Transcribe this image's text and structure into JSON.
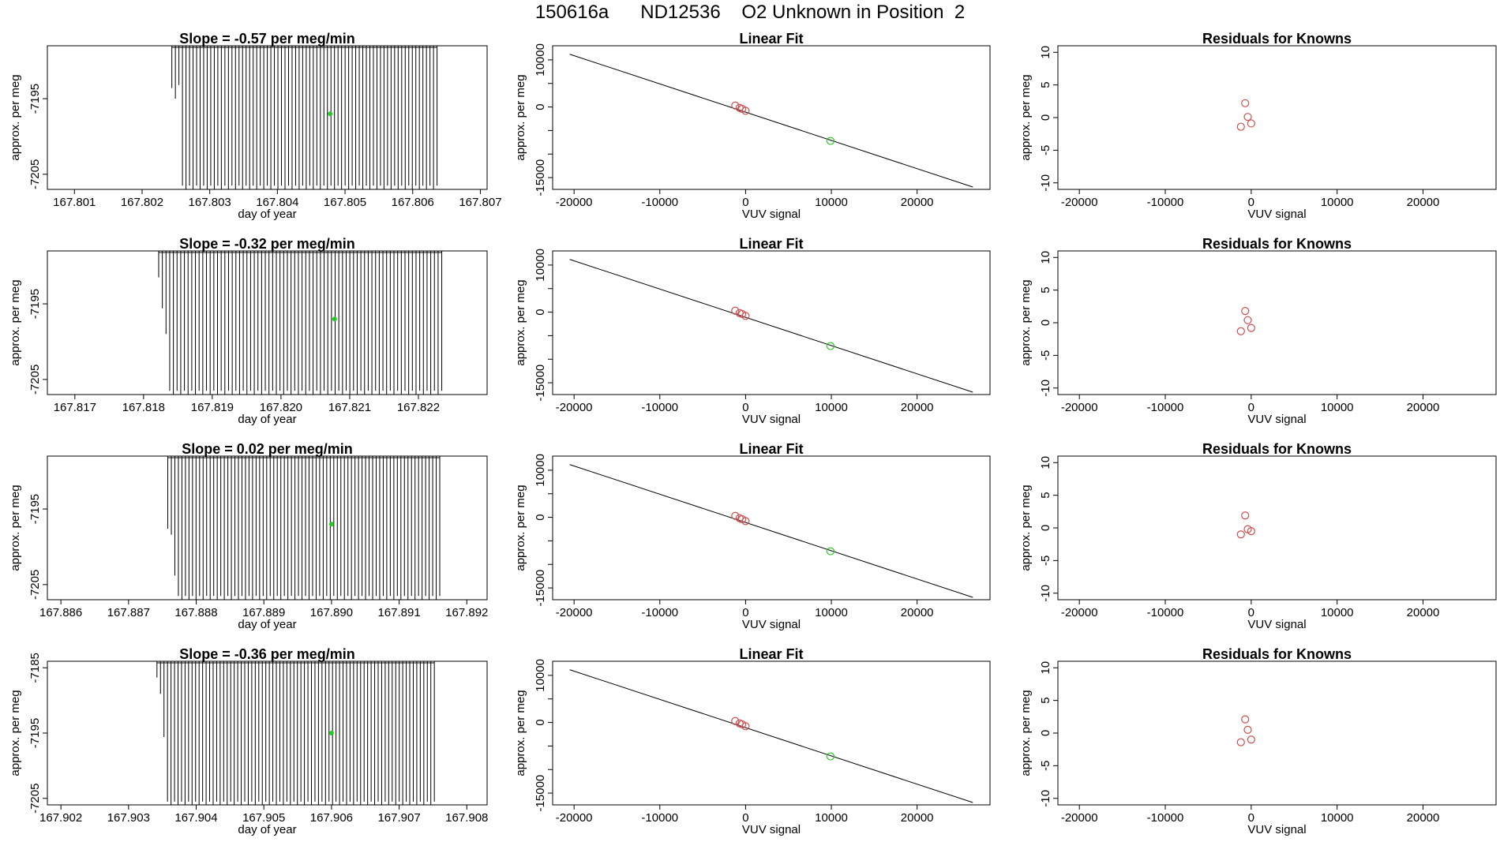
{
  "page_title": "150616a      ND12536    O2 Unknown in Position  2",
  "colors": {
    "trace": "#000000",
    "known_points": "#cd4f4f",
    "unknown_point": "#22cc22",
    "fit_line": "#000000"
  },
  "chart_data": [
    {
      "type": "line",
      "panel": "time-series",
      "row": 1,
      "title": "Slope =  -0.57  per meg/min",
      "xlabel": "day of year",
      "ylabel": "approx. per meg",
      "xlim": [
        167.8006,
        167.8071
      ],
      "ylim": [
        -7207,
        -7188
      ],
      "xticks": [
        "167.801",
        "167.802",
        "167.803",
        "167.804",
        "167.805",
        "167.806",
        "167.807"
      ],
      "yticks": [
        "-7195",
        "-7205"
      ],
      "trace": {
        "start": 167.80244,
        "end": 167.80636,
        "lines": 76,
        "baseline": -7207,
        "top": -7188,
        "low_bound": -7206.5,
        "dips": [
          -7193.6,
          -7195.0,
          -7193.2
        ]
      },
      "unknown_point": {
        "x": 167.80478,
        "y": -7197
      }
    },
    {
      "type": "line",
      "panel": "time-series",
      "row": 2,
      "title": "Slope =  -0.32  per meg/min",
      "xlabel": "day of year",
      "ylabel": "approx. per meg",
      "xlim": [
        167.8166,
        167.823
      ],
      "ylim": [
        -7207,
        -7188
      ],
      "xticks": [
        "167.817",
        "167.818",
        "167.819",
        "167.820",
        "167.821",
        "167.822"
      ],
      "yticks": [
        "-7195",
        "-7205"
      ],
      "trace": {
        "start": 167.81822,
        "end": 167.82234,
        "lines": 78,
        "baseline": -7207,
        "top": -7188,
        "low_bound": -7206.5,
        "dips": [
          -7191.5,
          -7195.6,
          -7199.0
        ]
      },
      "unknown_point": {
        "x": 167.82078,
        "y": -7197
      }
    },
    {
      "type": "line",
      "panel": "time-series",
      "row": 3,
      "title": "Slope =  0.02  per meg/min",
      "xlabel": "day of year",
      "ylabel": "approx. per meg",
      "xlim": [
        167.8858,
        167.8923
      ],
      "ylim": [
        -7207,
        -7188
      ],
      "xticks": [
        "167.886",
        "167.887",
        "167.888",
        "167.889",
        "167.890",
        "167.891",
        "167.892"
      ],
      "yticks": [
        "-7195",
        "-7205"
      ],
      "trace": {
        "start": 167.88758,
        "end": 167.8916,
        "lines": 78,
        "baseline": -7207,
        "top": -7188,
        "low_bound": -7206.5,
        "dips": [
          -7197.6,
          -7198.4,
          -7203.8
        ]
      },
      "unknown_point": {
        "x": 167.89,
        "y": -7197
      }
    },
    {
      "type": "line",
      "panel": "time-series",
      "row": 4,
      "title": "Slope =  -0.36  per meg/min",
      "xlabel": "day of year",
      "ylabel": "approx. per meg",
      "xlim": [
        167.9018,
        167.9083
      ],
      "ylim": [
        -7206,
        -7184
      ],
      "xticks": [
        "167.902",
        "167.903",
        "167.904",
        "167.905",
        "167.906",
        "167.907",
        "167.908"
      ],
      "yticks": [
        "-7185",
        "-7195",
        "-7205"
      ],
      "trace": {
        "start": 167.90342,
        "end": 167.90752,
        "lines": 80,
        "baseline": -7206,
        "top": -7184,
        "low_bound": -7205.5,
        "dips": [
          -7186.5,
          -7189.0,
          -7195.6
        ]
      },
      "unknown_point": {
        "x": 167.906,
        "y": -7195
      }
    },
    {
      "type": "scatter",
      "panel": "linear-fit",
      "row": 1,
      "title": "Linear Fit",
      "xlabel": "VUV signal",
      "ylabel": "approx. per meg",
      "xlim": [
        -22500,
        28500
      ],
      "ylim": [
        -17500,
        13000
      ],
      "xticks": [
        "-20000",
        "-10000",
        "0",
        "10000",
        "20000"
      ],
      "yticks": [
        "10000",
        "0",
        "-15000"
      ],
      "fit_line": {
        "x": [
          -20500,
          26500
        ],
        "y": [
          11200,
          -17000
        ]
      },
      "known_points": [
        {
          "x": -1200,
          "y": 300
        },
        {
          "x": -700,
          "y": -200
        },
        {
          "x": -400,
          "y": -400
        },
        {
          "x": 0,
          "y": -800
        }
      ],
      "unknown_point": {
        "x": 9900,
        "y": -7200
      }
    },
    {
      "type": "scatter",
      "panel": "linear-fit",
      "row": 2,
      "title": "Linear Fit",
      "xlabel": "VUV signal",
      "ylabel": "approx. per meg",
      "xlim": [
        -22500,
        28500
      ],
      "ylim": [
        -17500,
        13000
      ],
      "xticks": [
        "-20000",
        "-10000",
        "0",
        "10000",
        "20000"
      ],
      "yticks": [
        "10000",
        "0",
        "-15000"
      ],
      "fit_line": {
        "x": [
          -20500,
          26500
        ],
        "y": [
          11200,
          -17000
        ]
      },
      "known_points": [
        {
          "x": -1200,
          "y": 300
        },
        {
          "x": -700,
          "y": -200
        },
        {
          "x": -400,
          "y": -400
        },
        {
          "x": 0,
          "y": -800
        }
      ],
      "unknown_point": {
        "x": 9900,
        "y": -7200
      }
    },
    {
      "type": "scatter",
      "panel": "linear-fit",
      "row": 3,
      "title": "Linear Fit",
      "xlabel": "VUV signal",
      "ylabel": "approx. per meg",
      "xlim": [
        -22500,
        28500
      ],
      "ylim": [
        -17500,
        13000
      ],
      "xticks": [
        "-20000",
        "-10000",
        "0",
        "10000",
        "20000"
      ],
      "yticks": [
        "10000",
        "0",
        "-15000"
      ],
      "fit_line": {
        "x": [
          -20500,
          26500
        ],
        "y": [
          11200,
          -17000
        ]
      },
      "known_points": [
        {
          "x": -1200,
          "y": 300
        },
        {
          "x": -700,
          "y": -200
        },
        {
          "x": -400,
          "y": -400
        },
        {
          "x": 0,
          "y": -800
        }
      ],
      "unknown_point": {
        "x": 9900,
        "y": -7200
      }
    },
    {
      "type": "scatter",
      "panel": "linear-fit",
      "row": 4,
      "title": "Linear Fit",
      "xlabel": "VUV signal",
      "ylabel": "approx. per meg",
      "xlim": [
        -22500,
        28500
      ],
      "ylim": [
        -17500,
        13000
      ],
      "xticks": [
        "-20000",
        "-10000",
        "0",
        "10000",
        "20000"
      ],
      "yticks": [
        "10000",
        "0",
        "-15000"
      ],
      "fit_line": {
        "x": [
          -20500,
          26500
        ],
        "y": [
          11200,
          -17000
        ]
      },
      "known_points": [
        {
          "x": -1200,
          "y": 300
        },
        {
          "x": -700,
          "y": -200
        },
        {
          "x": -400,
          "y": -400
        },
        {
          "x": 0,
          "y": -800
        }
      ],
      "unknown_point": {
        "x": 9900,
        "y": -7200
      }
    },
    {
      "type": "scatter",
      "panel": "residuals",
      "row": 1,
      "title": "Residuals for Knowns",
      "xlabel": "VUV signal",
      "ylabel": "approx. per meg",
      "xlim": [
        -22500,
        28500
      ],
      "ylim": [
        -11,
        11
      ],
      "xticks": [
        "-20000",
        "-10000",
        "0",
        "10000",
        "20000"
      ],
      "yticks": [
        "10",
        "5",
        "0",
        "-5",
        "-10"
      ],
      "known_points": [
        {
          "x": -1200,
          "y": -1.4
        },
        {
          "x": -700,
          "y": 2.2
        },
        {
          "x": -400,
          "y": 0.1
        },
        {
          "x": 0,
          "y": -0.9
        }
      ]
    },
    {
      "type": "scatter",
      "panel": "residuals",
      "row": 2,
      "title": "Residuals for Knowns",
      "xlabel": "VUV signal",
      "ylabel": "approx. per meg",
      "xlim": [
        -22500,
        28500
      ],
      "ylim": [
        -11,
        11
      ],
      "xticks": [
        "-20000",
        "-10000",
        "0",
        "10000",
        "20000"
      ],
      "yticks": [
        "10",
        "5",
        "0",
        "-5",
        "-10"
      ],
      "known_points": [
        {
          "x": -1200,
          "y": -1.3
        },
        {
          "x": -700,
          "y": 1.8
        },
        {
          "x": -400,
          "y": 0.4
        },
        {
          "x": 0,
          "y": -0.8
        }
      ]
    },
    {
      "type": "scatter",
      "panel": "residuals",
      "row": 3,
      "title": "Residuals for Knowns",
      "xlabel": "VUV signal",
      "ylabel": "approx. per meg",
      "xlim": [
        -22500,
        28500
      ],
      "ylim": [
        -11,
        11
      ],
      "xticks": [
        "-20000",
        "-10000",
        "0",
        "10000",
        "20000"
      ],
      "yticks": [
        "10",
        "5",
        "0",
        "-5",
        "-10"
      ],
      "known_points": [
        {
          "x": -1200,
          "y": -1.0
        },
        {
          "x": -700,
          "y": 1.9
        },
        {
          "x": -400,
          "y": -0.2
        },
        {
          "x": 0,
          "y": -0.5
        }
      ]
    },
    {
      "type": "scatter",
      "panel": "residuals",
      "row": 4,
      "title": "Residuals for Knowns",
      "xlabel": "VUV signal",
      "ylabel": "approx. per meg",
      "xlim": [
        -22500,
        28500
      ],
      "ylim": [
        -11,
        11
      ],
      "xticks": [
        "-20000",
        "-10000",
        "0",
        "10000",
        "20000"
      ],
      "yticks": [
        "10",
        "5",
        "0",
        "-5",
        "-10"
      ],
      "known_points": [
        {
          "x": -1200,
          "y": -1.4
        },
        {
          "x": -700,
          "y": 2.1
        },
        {
          "x": -400,
          "y": 0.5
        },
        {
          "x": 0,
          "y": -1.0
        }
      ]
    }
  ]
}
